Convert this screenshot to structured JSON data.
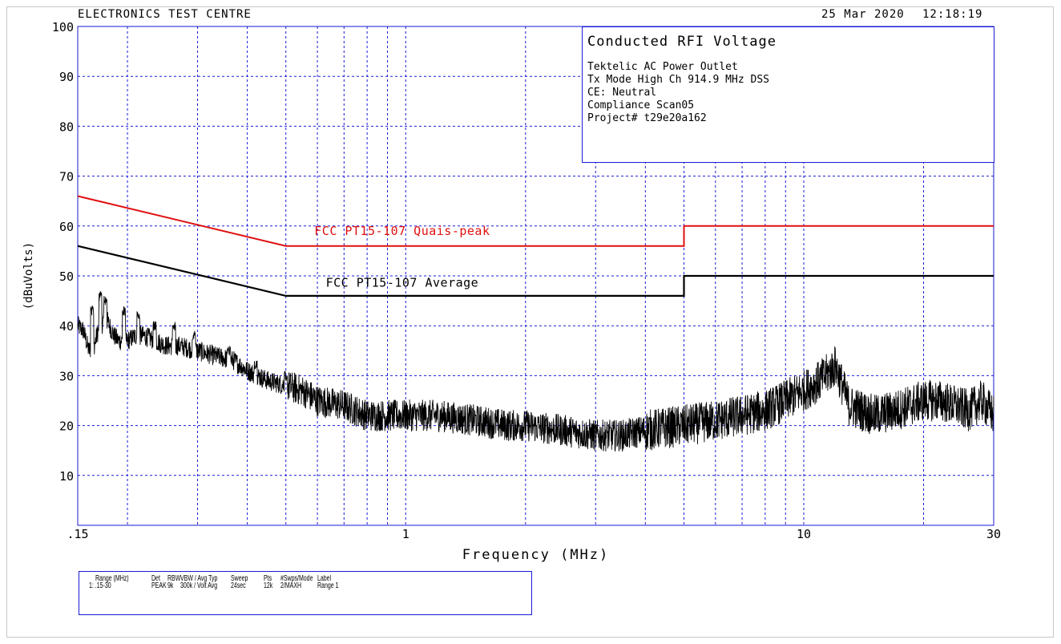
{
  "header": {
    "org": "ELECTRONICS TEST CENTRE",
    "date": "25 Mar 2020",
    "time": "12:18:19"
  },
  "info_box": {
    "title": "Conducted RFI Voltage",
    "lines": [
      "Tektelic AC Power Outlet",
      "Tx Mode High Ch 914.9 MHz DSS",
      "CE: Neutral",
      "Compliance Scan05",
      "Project# t29e20a162"
    ]
  },
  "legend_table": {
    "headers": [
      "Range (MHz)",
      "Det",
      "RBW",
      "VBW / Avg Typ",
      "Sweep",
      "Pts",
      "#Swps/Mode",
      "Label"
    ],
    "values": [
      "1: .15-30",
      "PEAK",
      "9k",
      "300k / Volt Avg",
      "24sec",
      "12k",
      "2/MAXH",
      "Range 1"
    ]
  },
  "colors": {
    "grid": "#1a1ad6",
    "quasi_peak_limit": "#e01010",
    "average_limit": "#000000",
    "trace": "#000000"
  },
  "chart_data": {
    "type": "line",
    "title": "",
    "xlabel": "Frequency (MHz)",
    "ylabel": "(dBuVolts)",
    "x_scale": "log",
    "xlim": [
      0.15,
      30
    ],
    "ylim": [
      0,
      100
    ],
    "grid": true,
    "x_tick_labels": [
      ".15",
      "1",
      "10",
      "30"
    ],
    "y_tick_labels": [
      "10",
      "20",
      "30",
      "40",
      "50",
      "60",
      "70",
      "80",
      "90",
      "100"
    ],
    "series": [
      {
        "name": "FCC PT15-107 Quais-peak",
        "color": "#e01010",
        "x": [
          0.15,
          0.5,
          0.5,
          5,
          5,
          30
        ],
        "y": [
          66,
          56,
          56,
          56,
          60,
          60
        ]
      },
      {
        "name": "FCC PT15-107 Average",
        "color": "#000000",
        "x": [
          0.15,
          0.5,
          0.5,
          5,
          5,
          30
        ],
        "y": [
          56,
          46,
          46,
          46,
          50,
          50
        ]
      },
      {
        "name": "",
        "color": "#000000",
        "x": [
          0.15,
          0.155,
          0.16,
          0.165,
          0.17,
          0.178,
          0.185,
          0.19,
          0.2,
          0.21,
          0.22,
          0.235,
          0.25,
          0.27,
          0.3,
          0.33,
          0.37,
          0.4,
          0.45,
          0.5,
          0.55,
          0.6,
          0.7,
          0.8,
          0.9,
          1.0,
          1.2,
          1.5,
          1.8,
          2.0,
          2.5,
          3.0,
          3.5,
          4.0,
          5.0,
          6.0,
          7.0,
          8.0,
          9.0,
          10.0,
          11.0,
          11.7,
          12.0,
          12.5,
          13.0,
          14.0,
          15.0,
          17.0,
          20.0,
          22.0,
          24.0,
          26.0,
          28.0,
          30.0
        ],
        "y": [
          40,
          39,
          35,
          36,
          40,
          41,
          38,
          37,
          37,
          38,
          38,
          37,
          36,
          36,
          35,
          34,
          33,
          31,
          29,
          28,
          27,
          25,
          24,
          22,
          22,
          22,
          22,
          21,
          20,
          20,
          19,
          18,
          18,
          19,
          20,
          21,
          22,
          23,
          25,
          27,
          29,
          31,
          32,
          28,
          24,
          23,
          22,
          23,
          25,
          25,
          24,
          23,
          25,
          22
        ]
      }
    ],
    "annotations": [
      {
        "text": "FCC PT15-107 Quais-peak",
        "x": 0.98,
        "y": 58.2
      },
      {
        "text": "FCC PT15-107 Average",
        "x": 0.98,
        "y": 47.8
      }
    ],
    "peaks": [
      {
        "x": 0.163,
        "y": 44
      },
      {
        "x": 0.171,
        "y": 47
      },
      {
        "x": 0.176,
        "y": 46
      },
      {
        "x": 0.196,
        "y": 44
      },
      {
        "x": 0.213,
        "y": 43
      },
      {
        "x": 0.234,
        "y": 41
      },
      {
        "x": 0.262,
        "y": 41
      },
      {
        "x": 0.294,
        "y": 39
      },
      {
        "x": 0.36,
        "y": 36
      },
      {
        "x": 0.42,
        "y": 33
      },
      {
        "x": 0.5,
        "y": 31
      }
    ]
  }
}
